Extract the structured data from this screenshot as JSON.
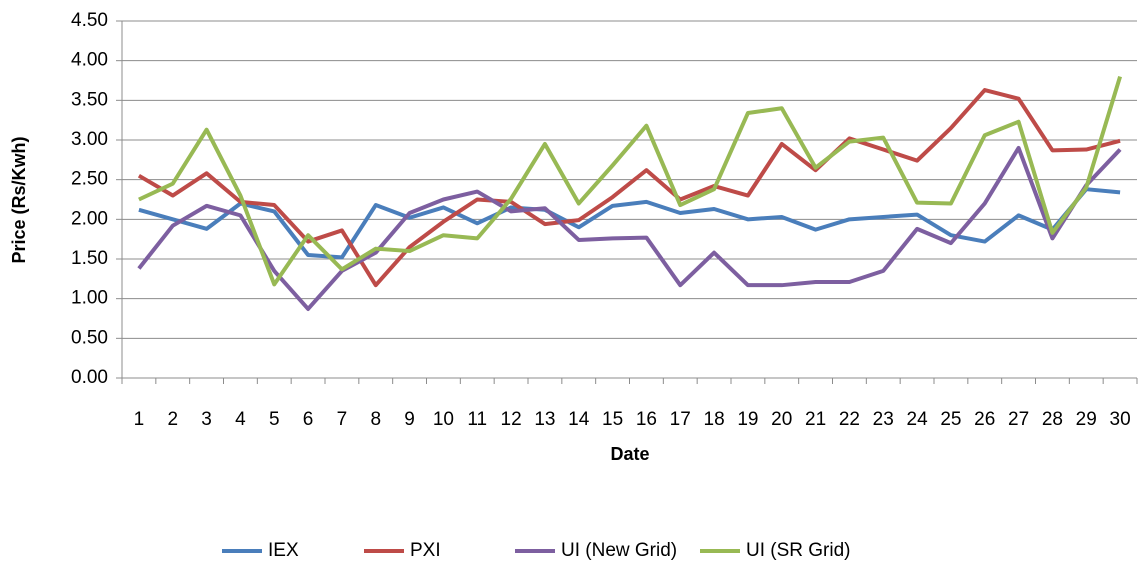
{
  "chart_data": {
    "type": "line",
    "y_label": "Price (Rs/Kwh)",
    "x_label": "Date",
    "categories": [
      "1",
      "2",
      "3",
      "4",
      "5",
      "6",
      "7",
      "8",
      "9",
      "10",
      "11",
      "12",
      "13",
      "14",
      "15",
      "16",
      "17",
      "18",
      "19",
      "20",
      "21",
      "22",
      "23",
      "24",
      "25",
      "26",
      "27",
      "28",
      "29",
      "30"
    ],
    "series": [
      {
        "name": "IEX",
        "color": "#4a7ebb",
        "values": [
          2.12,
          2.0,
          1.88,
          2.2,
          2.1,
          1.55,
          1.52,
          2.18,
          2.02,
          2.15,
          1.95,
          2.15,
          2.12,
          1.9,
          2.17,
          2.22,
          2.08,
          2.13,
          2.0,
          2.03,
          1.87,
          2.0,
          2.03,
          2.06,
          1.8,
          1.72,
          2.05,
          1.87,
          2.38,
          2.34
        ]
      },
      {
        "name": "PXI",
        "color": "#be4b48",
        "values": [
          2.55,
          2.3,
          2.58,
          2.22,
          2.18,
          1.72,
          1.86,
          1.17,
          1.65,
          1.97,
          2.25,
          2.22,
          1.94,
          1.99,
          2.28,
          2.62,
          2.25,
          2.42,
          2.3,
          2.95,
          2.62,
          3.02,
          2.88,
          2.74,
          3.15,
          3.63,
          3.52,
          2.87,
          2.88,
          2.99
        ]
      },
      {
        "name": "UI (New Grid)",
        "color": "#7d5fa0",
        "values": [
          1.38,
          1.92,
          2.17,
          2.05,
          1.35,
          0.87,
          1.35,
          1.58,
          2.08,
          2.25,
          2.35,
          2.1,
          2.14,
          1.74,
          1.76,
          1.77,
          1.17,
          1.58,
          1.17,
          1.17,
          1.21,
          1.21,
          1.35,
          1.88,
          1.7,
          2.2,
          2.9,
          1.76,
          2.43,
          2.88
        ]
      },
      {
        "name": "UI (SR Grid)",
        "color": "#98b954",
        "values": [
          2.25,
          2.45,
          3.13,
          2.3,
          1.18,
          1.8,
          1.37,
          1.63,
          1.6,
          1.8,
          1.76,
          2.26,
          2.95,
          2.2,
          2.68,
          3.18,
          2.18,
          2.38,
          3.34,
          3.4,
          2.65,
          2.98,
          3.03,
          2.21,
          2.2,
          3.06,
          3.23,
          1.83,
          2.4,
          3.8
        ]
      }
    ],
    "ylim": [
      0,
      4.5
    ],
    "yticks": [
      {
        "value": 0,
        "label": "0.00"
      },
      {
        "value": 0.5,
        "label": "0.50"
      },
      {
        "value": 1,
        "label": "1.00"
      },
      {
        "value": 1.5,
        "label": "1.50"
      },
      {
        "value": 2,
        "label": "2.00"
      },
      {
        "value": 2.5,
        "label": "2.50"
      },
      {
        "value": 3,
        "label": "3.00"
      },
      {
        "value": 3.5,
        "label": "3.50"
      },
      {
        "value": 4,
        "label": "4.00"
      },
      {
        "value": 4.5,
        "label": "4.50"
      }
    ],
    "grid": true,
    "legend": "bottom"
  }
}
